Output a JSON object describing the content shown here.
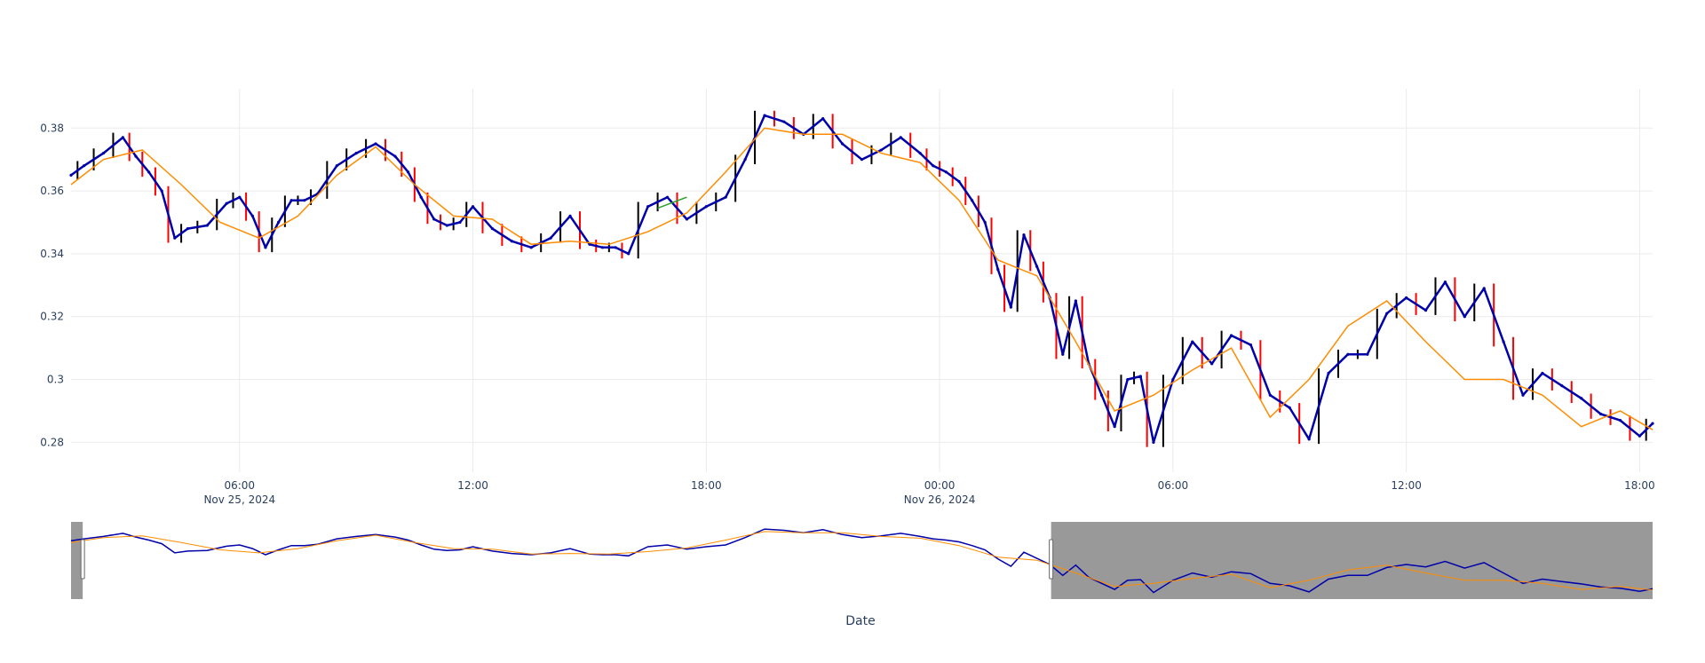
{
  "chart_data": {
    "type": "line",
    "title": "",
    "xlabel": "Date",
    "ylabel": "",
    "ylim": [
      0.2705,
      0.3925
    ],
    "xlim": [
      "2024-11-25 01:40",
      "2024-11-26 18:20"
    ],
    "grid": true,
    "legend": "none",
    "colors": {
      "price": "#0000aa",
      "wick_up": "#000000",
      "wick_down": "#ff0000",
      "moving_average": "#ff8c00",
      "highlight": "#2ca02c",
      "rangeslider_shade": "#999999"
    },
    "y_ticks": [
      "0.28",
      "0.3",
      "0.32",
      "0.34",
      "0.36",
      "0.38"
    ],
    "x_ticks": [
      {
        "time": "2024-11-25 06:00",
        "label": "06:00",
        "sublabel": "Nov 25, 2024"
      },
      {
        "time": "2024-11-25 12:00",
        "label": "12:00",
        "sublabel": ""
      },
      {
        "time": "2024-11-25 18:00",
        "label": "18:00",
        "sublabel": ""
      },
      {
        "time": "2024-11-26 00:00",
        "label": "00:00",
        "sublabel": "Nov 26, 2024"
      },
      {
        "time": "2024-11-26 06:00",
        "label": "06:00",
        "sublabel": ""
      },
      {
        "time": "2024-11-26 12:00",
        "label": "12:00",
        "sublabel": ""
      },
      {
        "time": "2024-11-26 18:00",
        "label": "18:00",
        "sublabel": ""
      }
    ],
    "series": [
      {
        "x": [
          "2024-11-25 01:40",
          "2024-11-25 02:00",
          "2024-11-25 02:30",
          "2024-11-25 03:00",
          "2024-11-25 03:20",
          "2024-11-25 03:40",
          "2024-11-25 04:00",
          "2024-11-25 04:20",
          "2024-11-25 04:40",
          "2024-11-25 05:10",
          "2024-11-25 05:40",
          "2024-11-25 06:00",
          "2024-11-25 06:20",
          "2024-11-25 06:40",
          "2024-11-25 07:00",
          "2024-11-25 07:20",
          "2024-11-25 07:40",
          "2024-11-25 08:00",
          "2024-11-25 08:30",
          "2024-11-25 09:00",
          "2024-11-25 09:30",
          "2024-11-25 10:00",
          "2024-11-25 10:20",
          "2024-11-25 10:40",
          "2024-11-25 11:00",
          "2024-11-25 11:20",
          "2024-11-25 11:40",
          "2024-11-25 12:00",
          "2024-11-25 12:30",
          "2024-11-25 13:00",
          "2024-11-25 13:30",
          "2024-11-25 14:00",
          "2024-11-25 14:30",
          "2024-11-25 15:00",
          "2024-11-25 15:20",
          "2024-11-25 15:40",
          "2024-11-25 16:00",
          "2024-11-25 16:30",
          "2024-11-25 17:00",
          "2024-11-25 17:30",
          "2024-11-25 18:00",
          "2024-11-25 18:30",
          "2024-11-25 19:00",
          "2024-11-25 19:30",
          "2024-11-25 20:00",
          "2024-11-25 20:30",
          "2024-11-25 21:00",
          "2024-11-25 21:30",
          "2024-11-25 22:00",
          "2024-11-25 22:30",
          "2024-11-25 23:00",
          "2024-11-25 23:30",
          "2024-11-25 23:50",
          "2024-11-26 00:10",
          "2024-11-26 00:30",
          "2024-11-26 00:50",
          "2024-11-26 01:10",
          "2024-11-26 01:30",
          "2024-11-26 01:50",
          "2024-11-26 02:10",
          "2024-11-26 02:30",
          "2024-11-26 02:50",
          "2024-11-26 03:10",
          "2024-11-26 03:30",
          "2024-11-26 03:50",
          "2024-11-26 04:10",
          "2024-11-26 04:30",
          "2024-11-26 04:50",
          "2024-11-26 05:10",
          "2024-11-26 05:30",
          "2024-11-26 06:00",
          "2024-11-26 06:30",
          "2024-11-26 07:00",
          "2024-11-26 07:30",
          "2024-11-26 08:00",
          "2024-11-26 08:30",
          "2024-11-26 09:00",
          "2024-11-26 09:30",
          "2024-11-26 10:00",
          "2024-11-26 10:30",
          "2024-11-26 11:00",
          "2024-11-26 11:30",
          "2024-11-26 12:00",
          "2024-11-26 12:30",
          "2024-11-26 13:00",
          "2024-11-26 13:30",
          "2024-11-26 14:00",
          "2024-11-26 14:30",
          "2024-11-26 15:00",
          "2024-11-26 15:30",
          "2024-11-26 16:00",
          "2024-11-26 16:30",
          "2024-11-26 17:00",
          "2024-11-26 17:30",
          "2024-11-26 18:00",
          "2024-11-26 18:20"
        ],
        "close": [
          0.365,
          0.368,
          0.372,
          0.377,
          0.371,
          0.366,
          0.36,
          0.345,
          0.348,
          0.349,
          0.356,
          0.358,
          0.352,
          0.342,
          0.35,
          0.357,
          0.357,
          0.359,
          0.368,
          0.372,
          0.375,
          0.371,
          0.366,
          0.358,
          0.351,
          0.349,
          0.35,
          0.355,
          0.348,
          0.344,
          0.342,
          0.345,
          0.352,
          0.343,
          0.342,
          0.342,
          0.34,
          0.355,
          0.358,
          0.351,
          0.355,
          0.358,
          0.37,
          0.384,
          0.382,
          0.378,
          0.383,
          0.375,
          0.37,
          0.373,
          0.377,
          0.372,
          0.368,
          0.366,
          0.363,
          0.357,
          0.35,
          0.335,
          0.323,
          0.346,
          0.336,
          0.326,
          0.308,
          0.325,
          0.305,
          0.295,
          0.285,
          0.3,
          0.301,
          0.28,
          0.3,
          0.312,
          0.305,
          0.314,
          0.311,
          0.295,
          0.291,
          0.281,
          0.302,
          0.308,
          0.308,
          0.321,
          0.326,
          0.322,
          0.331,
          0.32,
          0.329,
          0.312,
          0.295,
          0.302,
          0.298,
          0.294,
          0.289,
          0.287,
          0.282,
          0.286
        ]
      },
      {
        "name": "",
        "x": [
          "2024-11-25 01:40",
          "2024-11-25 02:30",
          "2024-11-25 03:30",
          "2024-11-25 04:30",
          "2024-11-25 05:30",
          "2024-11-25 06:30",
          "2024-11-25 07:30",
          "2024-11-25 08:30",
          "2024-11-25 09:30",
          "2024-11-25 10:30",
          "2024-11-25 11:30",
          "2024-11-25 12:30",
          "2024-11-25 13:30",
          "2024-11-25 14:30",
          "2024-11-25 15:30",
          "2024-11-25 16:30",
          "2024-11-25 17:30",
          "2024-11-25 18:30",
          "2024-11-25 19:30",
          "2024-11-25 20:30",
          "2024-11-25 21:30",
          "2024-11-25 22:30",
          "2024-11-25 23:30",
          "2024-11-26 00:30",
          "2024-11-26 01:30",
          "2024-11-26 02:30",
          "2024-11-26 03:30",
          "2024-11-26 04:30",
          "2024-11-26 05:30",
          "2024-11-26 06:30",
          "2024-11-26 07:30",
          "2024-11-26 08:30",
          "2024-11-26 09:30",
          "2024-11-26 10:30",
          "2024-11-26 11:30",
          "2024-11-26 12:30",
          "2024-11-26 13:30",
          "2024-11-26 14:30",
          "2024-11-26 15:30",
          "2024-11-26 16:30",
          "2024-11-26 17:30",
          "2024-11-26 18:20"
        ],
        "values": [
          0.362,
          0.37,
          0.373,
          0.362,
          0.35,
          0.345,
          0.352,
          0.365,
          0.374,
          0.362,
          0.352,
          0.351,
          0.343,
          0.344,
          0.343,
          0.347,
          0.353,
          0.366,
          0.38,
          0.378,
          0.378,
          0.372,
          0.369,
          0.357,
          0.338,
          0.333,
          0.312,
          0.29,
          0.295,
          0.303,
          0.31,
          0.288,
          0.3,
          0.317,
          0.325,
          0.312,
          0.3,
          0.3,
          0.295,
          0.285,
          0.29,
          0.284
        ]
      }
    ]
  }
}
